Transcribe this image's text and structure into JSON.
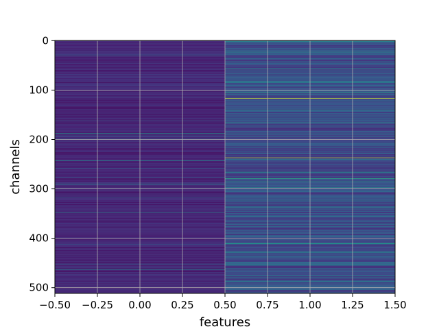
{
  "chart_data": {
    "type": "heatmap",
    "title": "",
    "xlabel": "features",
    "ylabel": "channels",
    "xlim": [
      -0.5,
      1.5
    ],
    "ylim": [
      511.5,
      -0.5
    ],
    "x_ticks": [
      -0.5,
      -0.25,
      0.0,
      0.25,
      0.5,
      0.75,
      1.0,
      1.25,
      1.5
    ],
    "x_tick_labels": [
      "−0.50",
      "−0.25",
      "0.00",
      "0.25",
      "0.50",
      "0.75",
      "1.00",
      "1.25",
      "1.50"
    ],
    "y_ticks": [
      0,
      100,
      200,
      300,
      400,
      500
    ],
    "y_tick_labels": [
      "0",
      "100",
      "200",
      "300",
      "400",
      "500"
    ],
    "grid": true,
    "colormap": "viridis",
    "n_rows": 512,
    "columns": [
      0,
      1
    ],
    "value_range": [
      0,
      1
    ],
    "column_background_level": [
      0.05,
      0.12
    ],
    "highlighted_rows": [
      {
        "column": 0,
        "row": 188,
        "value": 0.55
      },
      {
        "column": 0,
        "row": 258,
        "value": 0.3
      },
      {
        "column": 0,
        "row": 452,
        "value": 0.3
      },
      {
        "column": 1,
        "row": 85,
        "value": 0.45
      },
      {
        "column": 1,
        "row": 117,
        "value": 0.95
      },
      {
        "column": 1,
        "row": 166,
        "value": 0.5
      },
      {
        "column": 1,
        "row": 237,
        "value": 0.9
      },
      {
        "column": 1,
        "row": 279,
        "value": 0.6
      },
      {
        "column": 1,
        "row": 285,
        "value": 0.5
      },
      {
        "column": 1,
        "row": 300,
        "value": 0.4
      },
      {
        "column": 1,
        "row": 428,
        "value": 0.55
      },
      {
        "column": 1,
        "row": 475,
        "value": 0.45
      }
    ]
  }
}
